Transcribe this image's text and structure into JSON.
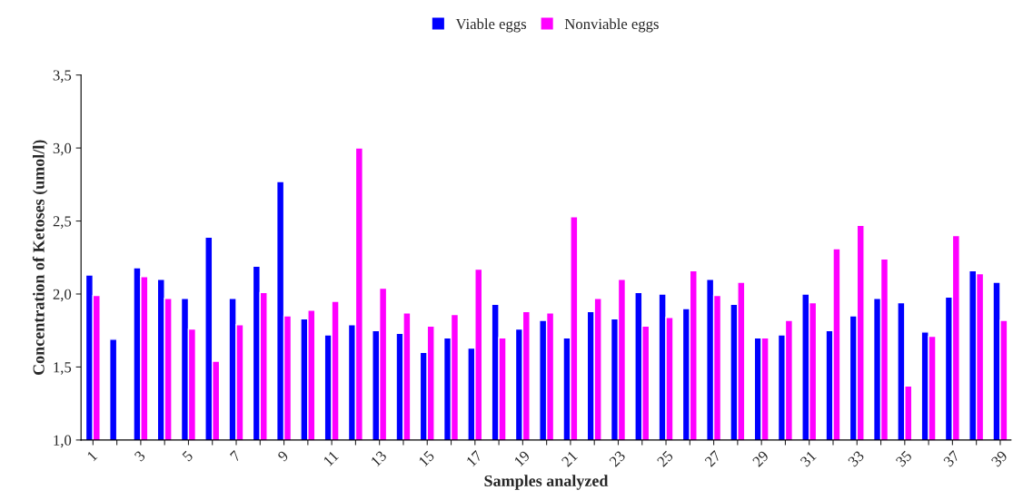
{
  "chart_data": {
    "type": "bar",
    "xlabel": "Samples analyzed",
    "ylabel": "Concentration of Ketoses (umol/l)",
    "categories": [
      "1",
      null,
      "3",
      null,
      "5",
      null,
      "7",
      null,
      "9",
      null,
      "11",
      null,
      "13",
      null,
      "15",
      null,
      "17",
      null,
      "19",
      null,
      "21",
      null,
      "23",
      null,
      "25",
      null,
      "27",
      null,
      "29",
      null,
      "31",
      null,
      "33",
      null,
      "35",
      null,
      "37",
      null,
      "39"
    ],
    "series": [
      {
        "name": "Viable eggs",
        "color": "#0000ff",
        "values": [
          2.13,
          1.69,
          2.18,
          2.1,
          1.97,
          2.39,
          1.97,
          2.19,
          2.77,
          1.83,
          1.72,
          1.79,
          1.75,
          1.73,
          1.6,
          1.7,
          1.63,
          1.93,
          1.76,
          1.82,
          1.7,
          1.88,
          1.83,
          2.01,
          2.0,
          1.9,
          2.1,
          1.93,
          1.7,
          1.72,
          2.0,
          1.75,
          1.85,
          1.97,
          1.94,
          1.74,
          1.98,
          2.16,
          2.08
        ]
      },
      {
        "name": "Nonviable eggs",
        "color": "#ff00ff",
        "values": [
          1.99,
          null,
          2.12,
          1.97,
          1.76,
          1.54,
          1.79,
          2.01,
          1.85,
          1.89,
          1.95,
          3.0,
          2.04,
          1.87,
          1.78,
          1.86,
          2.17,
          1.7,
          1.88,
          1.87,
          2.53,
          1.97,
          2.1,
          1.78,
          1.84,
          2.16,
          1.99,
          2.08,
          1.7,
          1.82,
          1.94,
          2.31,
          2.47,
          2.24,
          1.37,
          1.71,
          2.4,
          2.14,
          1.82
        ]
      }
    ],
    "ylim": [
      1.0,
      3.5
    ],
    "yticks": [
      {
        "value": 1.0,
        "label": "1,0"
      },
      {
        "value": 1.5,
        "label": "1,5"
      },
      {
        "value": 2.0,
        "label": "2,0"
      },
      {
        "value": 2.5,
        "label": "2,5"
      },
      {
        "value": 3.0,
        "label": "3,0"
      },
      {
        "value": 3.5,
        "label": "3,5"
      }
    ],
    "legend": "top",
    "grid": false
  }
}
